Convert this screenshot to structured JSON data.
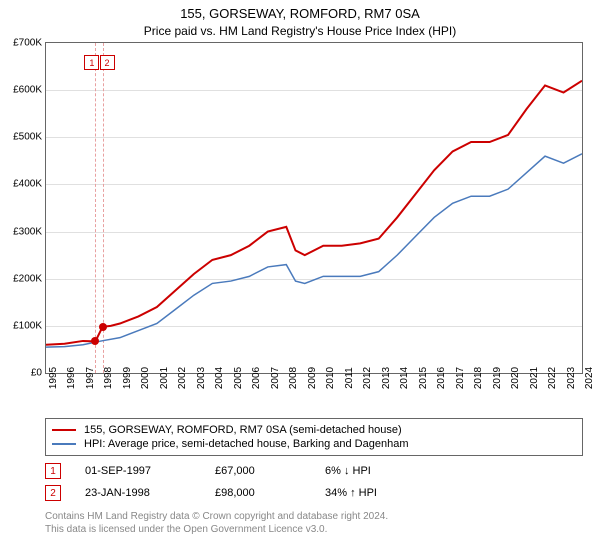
{
  "title": "155, GORSEWAY, ROMFORD, RM7 0SA",
  "subtitle": "Price paid vs. HM Land Registry's House Price Index (HPI)",
  "chart": {
    "type": "line",
    "background_color": "#ffffff",
    "grid_color": "#e0e0e0",
    "border_color": "#666666",
    "ylabel_prefix": "£",
    "ylabel_suffix": "K",
    "ylim": [
      0,
      700
    ],
    "ytick_step": 100,
    "xlim": [
      1995,
      2024
    ],
    "xtick_step": 1,
    "yticks": [
      0,
      100,
      200,
      300,
      400,
      500,
      600,
      700
    ],
    "xticks": [
      1995,
      1996,
      1997,
      1998,
      1999,
      2000,
      2001,
      2002,
      2003,
      2004,
      2005,
      2006,
      2007,
      2008,
      2009,
      2010,
      2011,
      2012,
      2013,
      2014,
      2015,
      2016,
      2017,
      2018,
      2019,
      2020,
      2021,
      2022,
      2023,
      2024
    ],
    "series": [
      {
        "label": "155, GORSEWAY, ROMFORD, RM7 0SA (semi-detached house)",
        "color": "#cc0000",
        "line_width": 2,
        "data": [
          [
            1995,
            60
          ],
          [
            1996,
            62
          ],
          [
            1997,
            68
          ],
          [
            1997.67,
            67
          ],
          [
            1998.06,
            98
          ],
          [
            1998.5,
            100
          ],
          [
            1999,
            105
          ],
          [
            2000,
            120
          ],
          [
            2001,
            140
          ],
          [
            2002,
            175
          ],
          [
            2003,
            210
          ],
          [
            2004,
            240
          ],
          [
            2005,
            250
          ],
          [
            2006,
            270
          ],
          [
            2007,
            300
          ],
          [
            2008,
            310
          ],
          [
            2008.5,
            260
          ],
          [
            2009,
            250
          ],
          [
            2010,
            270
          ],
          [
            2011,
            270
          ],
          [
            2012,
            275
          ],
          [
            2013,
            285
          ],
          [
            2014,
            330
          ],
          [
            2015,
            380
          ],
          [
            2016,
            430
          ],
          [
            2017,
            470
          ],
          [
            2018,
            490
          ],
          [
            2019,
            490
          ],
          [
            2020,
            505
          ],
          [
            2021,
            560
          ],
          [
            2022,
            610
          ],
          [
            2023,
            595
          ],
          [
            2024,
            620
          ]
        ]
      },
      {
        "label": "HPI: Average price, semi-detached house, Barking and Dagenham",
        "color": "#4a7abc",
        "line_width": 1.5,
        "data": [
          [
            1995,
            55
          ],
          [
            1996,
            56
          ],
          [
            1997,
            60
          ],
          [
            1998,
            68
          ],
          [
            1999,
            75
          ],
          [
            2000,
            90
          ],
          [
            2001,
            105
          ],
          [
            2002,
            135
          ],
          [
            2003,
            165
          ],
          [
            2004,
            190
          ],
          [
            2005,
            195
          ],
          [
            2006,
            205
          ],
          [
            2007,
            225
          ],
          [
            2008,
            230
          ],
          [
            2008.5,
            195
          ],
          [
            2009,
            190
          ],
          [
            2010,
            205
          ],
          [
            2011,
            205
          ],
          [
            2012,
            205
          ],
          [
            2013,
            215
          ],
          [
            2014,
            250
          ],
          [
            2015,
            290
          ],
          [
            2016,
            330
          ],
          [
            2017,
            360
          ],
          [
            2018,
            375
          ],
          [
            2019,
            375
          ],
          [
            2020,
            390
          ],
          [
            2021,
            425
          ],
          [
            2022,
            460
          ],
          [
            2023,
            445
          ],
          [
            2024,
            465
          ]
        ]
      }
    ],
    "points": [
      {
        "x": 1997.67,
        "y": 67,
        "color": "#cc0000"
      },
      {
        "x": 1998.06,
        "y": 98,
        "color": "#cc0000"
      }
    ],
    "annotations": [
      {
        "label": "1",
        "x": 1997.67,
        "box_color": "#cc0000"
      },
      {
        "label": "2",
        "x": 1998.06,
        "box_color": "#cc0000"
      }
    ]
  },
  "legend": {
    "items": [
      {
        "color": "#cc0000",
        "label": "155, GORSEWAY, ROMFORD, RM7 0SA (semi-detached house)"
      },
      {
        "color": "#4a7abc",
        "label": "HPI: Average price, semi-detached house, Barking and Dagenham"
      }
    ]
  },
  "transactions": [
    {
      "marker": "1",
      "marker_color": "#cc0000",
      "date": "01-SEP-1997",
      "price": "£67,000",
      "diff": "6% ↓ HPI"
    },
    {
      "marker": "2",
      "marker_color": "#cc0000",
      "date": "23-JAN-1998",
      "price": "£98,000",
      "diff": "34% ↑ HPI"
    }
  ],
  "footer": {
    "line1": "Contains HM Land Registry data © Crown copyright and database right 2024.",
    "line2": "This data is licensed under the Open Government Licence v3.0."
  }
}
